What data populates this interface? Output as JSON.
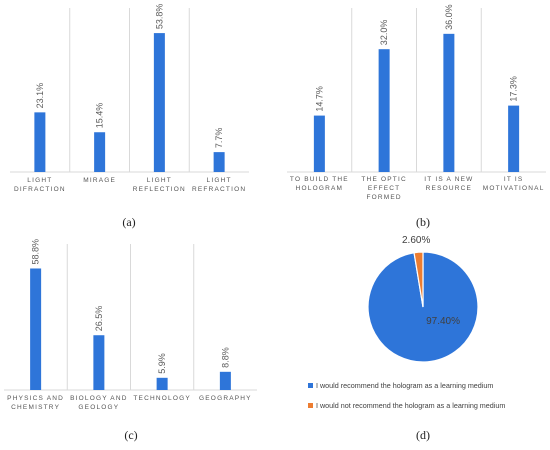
{
  "figure": {
    "panel_labels": [
      "(a)",
      "(b)",
      "(c)",
      "(d)"
    ]
  },
  "colors": {
    "bar": "#2E75D9",
    "grid": "#D9D9D9",
    "pie_main": "#2E75D9",
    "pie_minor": "#ED7D31",
    "text": "#595959"
  },
  "chart_data": [
    {
      "type": "bar",
      "panel": "(a)",
      "categories": [
        [
          "LIGHT",
          "DIFRACTION"
        ],
        [
          "MIRAGE"
        ],
        [
          "LIGHT",
          "REFLECTION"
        ],
        [
          "LIGHT",
          "REFRACTION"
        ]
      ],
      "values": [
        23.1,
        15.4,
        53.8,
        7.7
      ],
      "data_labels": [
        "23.1%",
        "15.4%",
        "53.8%",
        "7.7%"
      ],
      "ylim": [
        0,
        55
      ],
      "grid": "vertical separators"
    },
    {
      "type": "bar",
      "panel": "(b)",
      "categories": [
        [
          "TO BUILD THE",
          "HOLOGRAM"
        ],
        [
          "THE OPTIC",
          "EFFECT",
          "FORMED"
        ],
        [
          "IT IS A NEW",
          "RESOURCE"
        ],
        [
          "IT IS",
          "MOTIVATIONAL"
        ]
      ],
      "values": [
        14.7,
        32.0,
        36.0,
        17.3
      ],
      "data_labels": [
        "14.7%",
        "32.0%",
        "36.0%",
        "17.3%"
      ],
      "ylim": [
        0,
        37
      ],
      "grid": "vertical separators"
    },
    {
      "type": "bar",
      "panel": "(c)",
      "categories": [
        [
          "PHYSICS AND",
          "CHEMISTRY"
        ],
        [
          "BIOLOGY AND",
          "GEOLOGY"
        ],
        [
          "TECHNOLOGY"
        ],
        [
          "GEOGRAPHY"
        ]
      ],
      "values": [
        58.8,
        26.5,
        5.9,
        8.8
      ],
      "data_labels": [
        "58.8%",
        "26.5%",
        "5.9%",
        "8.8%"
      ],
      "ylim": [
        0,
        60
      ],
      "grid": "vertical separators"
    },
    {
      "type": "pie",
      "panel": "(d)",
      "labels": [
        "I would recommend the hologram as a learning medium",
        "I would not recommend the hologram as a learning medium"
      ],
      "values": [
        97.4,
        2.6
      ],
      "data_labels": [
        "97.40%",
        "2.60%"
      ],
      "legend": "bottom"
    }
  ]
}
